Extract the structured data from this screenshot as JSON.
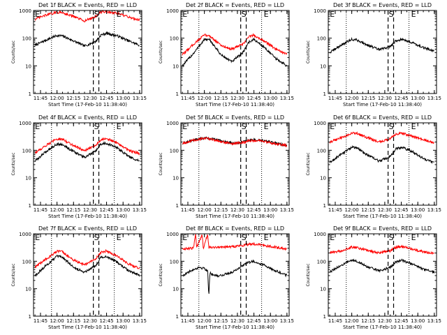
{
  "figure": {
    "xlabel": "Start Time (17-Feb-10 11:38:40)",
    "ylabel": "Counts/sec",
    "x_ticks": [
      "11:45",
      "12:00",
      "12:15",
      "12:30",
      "12:45",
      "13:00",
      "13:15"
    ],
    "y_ticks": [
      "1",
      "10",
      "100",
      "1000"
    ],
    "markers": [
      "E",
      "S",
      "E"
    ],
    "colors": {
      "events": "#000000",
      "lld": "#ff0000",
      "axis": "#000000",
      "background": "#ffffff"
    }
  },
  "chart_data": [
    {
      "type": "line",
      "detector": "1f",
      "title": "Det 1f BLACK = Events, RED = LLD",
      "log_y": true,
      "ylim": [
        1,
        1000
      ],
      "xlim": [
        "11:38:40",
        "13:17"
      ],
      "markers": {
        "E1": "11:42",
        "S_dashed": [
          "12:33",
          "12:38"
        ],
        "E2": "12:52",
        "dotted": [
          "11:55",
          "12:52"
        ]
      },
      "series": [
        {
          "name": "Events",
          "color": "#000000",
          "x": [
            "11:40",
            "11:50",
            "12:00",
            "12:05",
            "12:15",
            "12:25",
            "12:35",
            "12:40",
            "12:45",
            "12:55",
            "13:05",
            "13:15"
          ],
          "values": [
            55,
            85,
            125,
            120,
            80,
            52,
            75,
            130,
            150,
            120,
            80,
            55
          ]
        },
        {
          "name": "LLD",
          "color": "#ff0000",
          "x": [
            "11:40",
            "11:50",
            "12:00",
            "12:05",
            "12:15",
            "12:25",
            "12:35",
            "12:40",
            "12:45",
            "12:55",
            "13:05",
            "13:15"
          ],
          "values": [
            480,
            680,
            860,
            840,
            600,
            420,
            600,
            880,
            900,
            780,
            580,
            450
          ]
        }
      ]
    },
    {
      "type": "line",
      "detector": "2f",
      "title": "Det 2f BLACK = Events, RED = LLD",
      "log_y": true,
      "ylim": [
        1,
        1000
      ],
      "xlim": [
        "11:38:40",
        "13:17"
      ],
      "markers": {
        "E1": "11:42",
        "S_dashed": [
          "12:33",
          "12:38"
        ],
        "E2": "12:52",
        "dotted": [
          "11:55",
          "12:52"
        ]
      },
      "series": [
        {
          "name": "Events",
          "color": "#000000",
          "x": [
            "11:40",
            "11:50",
            "12:00",
            "12:05",
            "12:15",
            "12:25",
            "12:35",
            "12:40",
            "12:45",
            "12:55",
            "13:05",
            "13:15"
          ],
          "values": [
            10,
            28,
            90,
            85,
            25,
            14,
            30,
            70,
            90,
            45,
            18,
            10
          ]
        },
        {
          "name": "LLD",
          "color": "#ff0000",
          "x": [
            "11:40",
            "11:50",
            "12:00",
            "12:05",
            "12:15",
            "12:25",
            "12:35",
            "12:40",
            "12:45",
            "12:55",
            "13:05",
            "13:15"
          ],
          "values": [
            25,
            60,
            130,
            120,
            55,
            40,
            60,
            110,
            130,
            75,
            40,
            25
          ]
        }
      ]
    },
    {
      "type": "line",
      "detector": "3f",
      "title": "Det 3f BLACK = Events, RED = LLD",
      "log_y": true,
      "ylim": [
        1,
        1000
      ],
      "xlim": [
        "11:38:40",
        "13:17"
      ],
      "markers": {
        "E1": "11:42",
        "S_dashed": [
          "12:33",
          "12:38"
        ],
        "E2": "12:52",
        "dotted": [
          "11:55",
          "12:52"
        ]
      },
      "series": [
        {
          "name": "Events",
          "color": "#000000",
          "x": [
            "11:40",
            "11:50",
            "12:00",
            "12:05",
            "12:15",
            "12:25",
            "12:35",
            "12:40",
            "12:45",
            "12:55",
            "13:05",
            "13:15"
          ],
          "values": [
            30,
            55,
            90,
            85,
            55,
            38,
            50,
            80,
            90,
            70,
            45,
            35
          ]
        }
      ]
    },
    {
      "type": "line",
      "detector": "4f",
      "title": "Det 4f BLACK = Events, RED = LLD",
      "log_y": true,
      "ylim": [
        1,
        1000
      ],
      "xlim": [
        "11:38:40",
        "13:17"
      ],
      "markers": {
        "E1": "11:42",
        "S_dashed": [
          "12:33",
          "12:38"
        ],
        "E2": "12:52",
        "dotted": [
          "11:55",
          "12:52"
        ]
      },
      "series": [
        {
          "name": "Events",
          "color": "#000000",
          "x": [
            "11:40",
            "11:50",
            "12:00",
            "12:05",
            "12:15",
            "12:25",
            "12:35",
            "12:40",
            "12:45",
            "12:55",
            "13:05",
            "13:15"
          ],
          "values": [
            40,
            90,
            170,
            160,
            90,
            55,
            90,
            170,
            180,
            120,
            60,
            40
          ]
        },
        {
          "name": "LLD",
          "color": "#ff0000",
          "x": [
            "11:40",
            "11:50",
            "12:00",
            "12:05",
            "12:15",
            "12:25",
            "12:35",
            "12:40",
            "12:45",
            "12:55",
            "13:05",
            "13:15"
          ],
          "values": [
            80,
            150,
            260,
            250,
            150,
            95,
            150,
            250,
            270,
            180,
            100,
            75
          ]
        }
      ]
    },
    {
      "type": "line",
      "detector": "5f",
      "title": "Det 5f BLACK = Events, RED = LLD",
      "log_y": true,
      "ylim": [
        1,
        1000
      ],
      "xlim": [
        "11:38:40",
        "13:17"
      ],
      "markers": {
        "E1": "11:42",
        "S_dashed": [
          "12:33",
          "12:38"
        ],
        "E2": "12:52",
        "dotted": [
          "11:55",
          "12:52"
        ]
      },
      "series": [
        {
          "name": "Events",
          "color": "#000000",
          "x": [
            "11:40",
            "11:50",
            "12:00",
            "12:05",
            "12:15",
            "12:25",
            "12:35",
            "12:40",
            "12:45",
            "12:55",
            "13:05",
            "13:15"
          ],
          "values": [
            180,
            230,
            280,
            270,
            220,
            180,
            200,
            230,
            240,
            220,
            180,
            150
          ]
        },
        {
          "name": "LLD",
          "color": "#ff0000",
          "x": [
            "11:40",
            "11:50",
            "12:00",
            "12:05",
            "12:15",
            "12:25",
            "12:35",
            "12:40",
            "12:45",
            "12:55",
            "13:05",
            "13:15"
          ],
          "values": [
            180,
            230,
            270,
            260,
            210,
            170,
            190,
            220,
            230,
            210,
            170,
            150
          ]
        }
      ]
    },
    {
      "type": "line",
      "detector": "6f",
      "title": "Det 6f BLACK = Events, RED = LLD",
      "log_y": true,
      "ylim": [
        1,
        1000
      ],
      "xlim": [
        "11:38:40",
        "13:17"
      ],
      "markers": {
        "E1": "11:42",
        "S_dashed": [
          "12:33",
          "12:38"
        ],
        "E2": "12:52",
        "dotted": [
          "11:55",
          "12:52"
        ]
      },
      "series": [
        {
          "name": "Events",
          "color": "#000000",
          "x": [
            "11:40",
            "11:50",
            "12:00",
            "12:05",
            "12:15",
            "12:25",
            "12:35",
            "12:40",
            "12:45",
            "12:55",
            "13:05",
            "13:15"
          ],
          "values": [
            35,
            70,
            130,
            120,
            65,
            40,
            60,
            110,
            130,
            90,
            50,
            35
          ]
        },
        {
          "name": "LLD",
          "color": "#ff0000",
          "x": [
            "11:40",
            "11:50",
            "12:00",
            "12:05",
            "12:15",
            "12:25",
            "12:35",
            "12:40",
            "12:45",
            "12:55",
            "13:05",
            "13:15"
          ],
          "values": [
            200,
            280,
            420,
            400,
            280,
            200,
            260,
            380,
            420,
            330,
            240,
            190
          ]
        }
      ]
    },
    {
      "type": "line",
      "detector": "7f",
      "title": "Det 7f BLACK = Events, RED = LLD",
      "log_y": true,
      "ylim": [
        1,
        1000
      ],
      "xlim": [
        "11:38:40",
        "13:17"
      ],
      "markers": {
        "E1": "11:42",
        "S_dashed": [
          "12:33",
          "12:38"
        ],
        "E2": "12:52",
        "dotted": [
          "11:55",
          "12:52"
        ]
      },
      "series": [
        {
          "name": "Events",
          "color": "#000000",
          "x": [
            "11:40",
            "11:50",
            "12:00",
            "12:05",
            "12:15",
            "12:25",
            "12:35",
            "12:40",
            "12:45",
            "12:55",
            "13:05",
            "13:15"
          ],
          "values": [
            30,
            70,
            150,
            140,
            60,
            40,
            70,
            140,
            150,
            90,
            45,
            30
          ]
        },
        {
          "name": "LLD",
          "color": "#ff0000",
          "x": [
            "11:40",
            "11:50",
            "12:00",
            "12:05",
            "12:15",
            "12:25",
            "12:35",
            "12:40",
            "12:45",
            "12:55",
            "13:05",
            "13:15"
          ],
          "values": [
            60,
            120,
            230,
            220,
            110,
            75,
            120,
            210,
            240,
            150,
            80,
            55
          ]
        }
      ]
    },
    {
      "type": "line",
      "detector": "8f",
      "title": "Det 8f BLACK = Events, RED = LLD",
      "log_y": true,
      "ylim": [
        1,
        1000
      ],
      "xlim": [
        "11:38:40",
        "13:17"
      ],
      "markers": {
        "E1": "11:42",
        "S_dashed": [
          "12:33",
          "12:38"
        ],
        "E2": "12:52",
        "dotted": [
          "11:55",
          "12:52"
        ]
      },
      "series": [
        {
          "name": "Events",
          "color": "#000000",
          "x": [
            "11:40",
            "11:50",
            "11:55",
            "12:00",
            "12:03",
            "12:04",
            "12:05",
            "12:08",
            "12:15",
            "12:25",
            "12:35",
            "12:40",
            "12:45",
            "12:55",
            "13:05",
            "13:15"
          ],
          "values": [
            30,
            50,
            60,
            55,
            45,
            5,
            40,
            30,
            30,
            40,
            70,
            90,
            100,
            70,
            45,
            30
          ]
        },
        {
          "name": "LLD",
          "color": "#ff0000",
          "x": [
            "11:40",
            "11:50",
            "11:52",
            "11:53",
            "11:58",
            "11:59",
            "12:03",
            "12:04",
            "12:15",
            "12:25",
            "12:35",
            "12:40",
            "12:45",
            "12:55",
            "13:05",
            "13:15"
          ],
          "values": [
            280,
            300,
            1000,
            300,
            1000,
            300,
            1000,
            320,
            330,
            340,
            380,
            420,
            430,
            380,
            320,
            280
          ]
        }
      ]
    },
    {
      "type": "line",
      "detector": "9f",
      "title": "Det 9f BLACK = Events, RED = LLD",
      "log_y": true,
      "ylim": [
        1,
        1000
      ],
      "xlim": [
        "11:38:40",
        "13:17"
      ],
      "markers": {
        "E1": "11:42",
        "S_dashed": [
          "12:33",
          "12:38"
        ],
        "E2": "12:52",
        "dotted": [
          "11:55",
          "12:52"
        ]
      },
      "series": [
        {
          "name": "Events",
          "color": "#000000",
          "x": [
            "11:40",
            "11:50",
            "12:00",
            "12:05",
            "12:15",
            "12:25",
            "12:35",
            "12:40",
            "12:45",
            "12:55",
            "13:05",
            "13:15"
          ],
          "values": [
            40,
            70,
            110,
            100,
            60,
            45,
            60,
            95,
            110,
            80,
            50,
            40
          ]
        },
        {
          "name": "LLD",
          "color": "#ff0000",
          "x": [
            "11:40",
            "11:50",
            "12:00",
            "12:05",
            "12:15",
            "12:25",
            "12:35",
            "12:40",
            "12:45",
            "12:55",
            "13:05",
            "13:15"
          ],
          "values": [
            200,
            240,
            330,
            310,
            240,
            200,
            240,
            320,
            340,
            280,
            220,
            190
          ]
        }
      ]
    }
  ]
}
